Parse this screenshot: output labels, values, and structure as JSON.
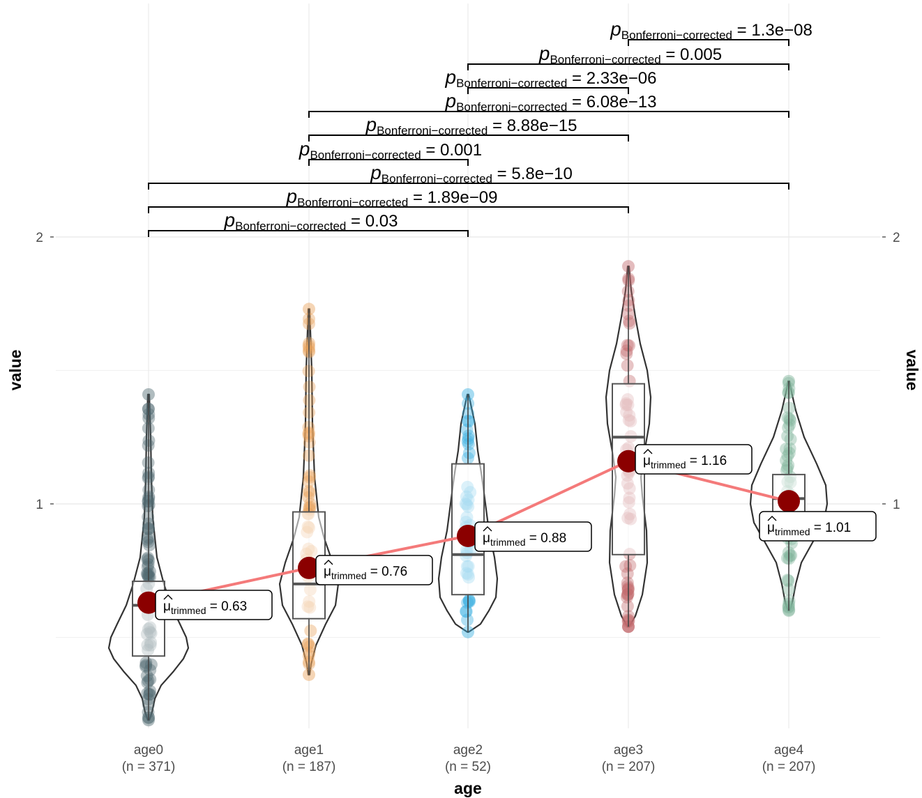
{
  "chart_data": {
    "type": "violin",
    "title": "",
    "xlabel": "age",
    "ylabel": "value",
    "ylabel_right": "value",
    "ylim": [
      0.2,
      2.35
    ],
    "y_ticks": [
      "1",
      "2"
    ],
    "grid": true,
    "legend": "none",
    "categories": [
      "age0",
      "age1",
      "age2",
      "age3",
      "age4"
    ],
    "n_labels": [
      "(n = 371)",
      "(n = 187)",
      "(n = 52)",
      "(n = 207)",
      "(n = 207)"
    ],
    "colors": [
      "#506a70",
      "#e8a25c",
      "#3ab0e0",
      "#c46b6e",
      "#7fb49a"
    ],
    "trimmed_means": [
      0.63,
      0.76,
      0.88,
      1.16,
      1.01
    ],
    "mean_labels": [
      "0.63",
      "0.76",
      "0.88",
      "1.16",
      "1.01"
    ],
    "mean_symbol": "μ",
    "mean_subscript": "trimmed",
    "boxes": [
      {
        "min": 0.19,
        "q1": 0.43,
        "median": 0.62,
        "q3": 0.71,
        "max": 1.41
      },
      {
        "min": 0.36,
        "q1": 0.57,
        "median": 0.7,
        "q3": 0.97,
        "max": 1.73
      },
      {
        "min": 0.52,
        "q1": 0.66,
        "median": 0.81,
        "q3": 1.15,
        "max": 1.41
      },
      {
        "min": 0.54,
        "q1": 0.81,
        "median": 1.25,
        "q3": 1.45,
        "max": 1.89
      },
      {
        "min": 0.6,
        "q1": 0.87,
        "median": 1.02,
        "q3": 1.11,
        "max": 1.46
      }
    ],
    "pairwise": {
      "label_prefix": "p",
      "label_subscript": "Bonferroni−corrected",
      "comparisons": [
        {
          "groups": [
            "age0",
            "age2"
          ],
          "p": "0.03"
        },
        {
          "groups": [
            "age0",
            "age3"
          ],
          "p": "1.89e−09"
        },
        {
          "groups": [
            "age0",
            "age4"
          ],
          "p": "5.8e−10"
        },
        {
          "groups": [
            "age1",
            "age2"
          ],
          "p": "0.001"
        },
        {
          "groups": [
            "age1",
            "age3"
          ],
          "p": "8.88e−15"
        },
        {
          "groups": [
            "age1",
            "age4"
          ],
          "p": "6.08e−13"
        },
        {
          "groups": [
            "age2",
            "age3"
          ],
          "p": "2.33e−06"
        },
        {
          "groups": [
            "age2",
            "age4"
          ],
          "p": "0.005"
        },
        {
          "groups": [
            "age3",
            "age4"
          ],
          "p": "1.3e−08"
        }
      ]
    }
  }
}
